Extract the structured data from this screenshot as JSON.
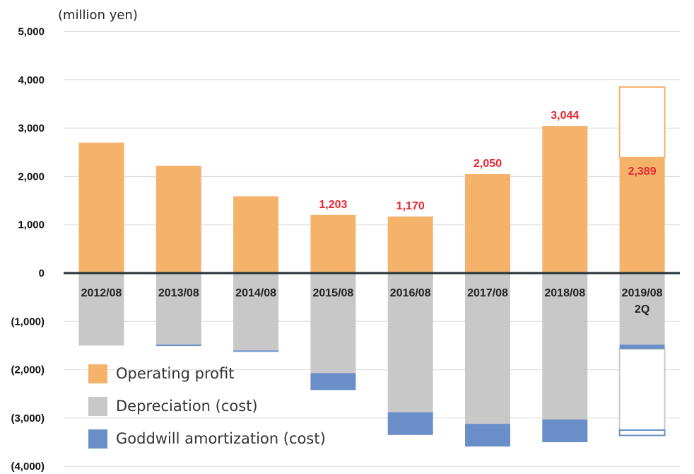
{
  "chart_data": {
    "type": "bar",
    "unit_label": "(million yen)",
    "categories": [
      "2012/08",
      "2013/08",
      "2014/08",
      "2015/08",
      "2016/08",
      "2017/08",
      "2018/08",
      "2019/08\n2Q"
    ],
    "series": [
      {
        "name": "Operating profit",
        "color": "#f5b26b",
        "values": [
          2700,
          2220,
          1590,
          1203,
          1170,
          2050,
          3044,
          2389
        ]
      },
      {
        "name": "Depreciation (cost)",
        "color": "#c8c8c8",
        "values": [
          -1500,
          -1480,
          -1600,
          -2070,
          -2880,
          -3120,
          -3030,
          -1480
        ]
      },
      {
        "name": "Goddwill amortization (cost)",
        "color": "#6a8fc8",
        "values": [
          0,
          -30,
          -30,
          -350,
          -470,
          -470,
          -470,
          -90
        ]
      }
    ],
    "data_labels": [
      "",
      "",
      "",
      "1,203",
      "1,170",
      "2,050",
      "3,044",
      "2,389"
    ],
    "forecast_last_category": {
      "operating_profit_total": 3850,
      "depreciation_total": -3250,
      "goodwill_amortization_total": -3360
    },
    "y_ticks": [
      {
        "value": 5000,
        "label": "5,000"
      },
      {
        "value": 4000,
        "label": "4,000"
      },
      {
        "value": 3000,
        "label": "3,000"
      },
      {
        "value": 2000,
        "label": "2,000"
      },
      {
        "value": 1000,
        "label": "1,000"
      },
      {
        "value": 0,
        "label": "0"
      },
      {
        "value": -1000,
        "label": "(1,000)"
      },
      {
        "value": -2000,
        "label": "(2,000)"
      },
      {
        "value": -3000,
        "label": "(3,000)"
      },
      {
        "value": -4000,
        "label": "(4,000)"
      }
    ],
    "ylim": [
      -4000,
      5000
    ],
    "grid": true,
    "legend_position": "bottom-left"
  }
}
